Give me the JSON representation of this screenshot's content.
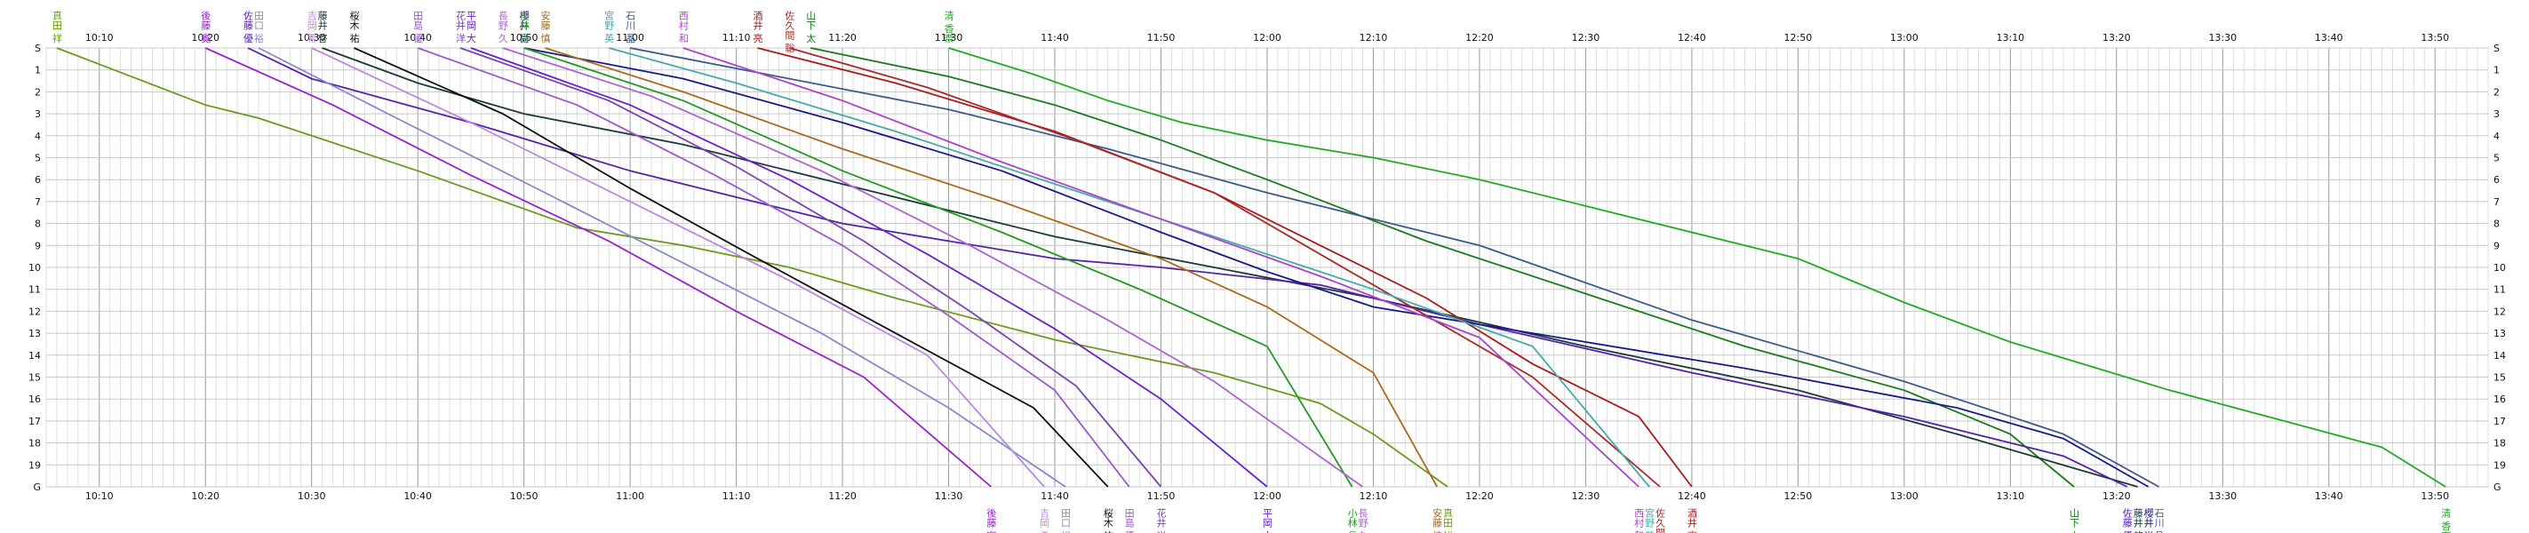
{
  "chart_data": {
    "type": "line",
    "title": "",
    "xlabel": "",
    "ylabel": "",
    "x_axis": {
      "start": "10:05",
      "end": "13:55",
      "tick_labels": [
        "10:10",
        "10:20",
        "10:30",
        "10:40",
        "10:50",
        "11:00",
        "11:10",
        "11:20",
        "11:30",
        "11:40",
        "11:50",
        "12:00",
        "12:10",
        "12:20",
        "12:30",
        "12:40",
        "12:50",
        "13:00",
        "13:10",
        "13:20",
        "13:30",
        "13:40",
        "13:50"
      ]
    },
    "y_axis": {
      "tick_labels": [
        "S",
        "1",
        "2",
        "3",
        "4",
        "5",
        "6",
        "7",
        "8",
        "9",
        "10",
        "11",
        "12",
        "13",
        "14",
        "15",
        "16",
        "17",
        "18",
        "19",
        "G"
      ],
      "ylim": [
        0,
        20
      ],
      "inverted": true
    },
    "grid": true,
    "legend": "none",
    "series": [
      {
        "start_label": "真田 祥",
        "end_label": "真田 祥",
        "color": "#6a9a1a",
        "points": [
          [
            "10:06",
            0
          ],
          [
            "10:20",
            2.6
          ],
          [
            "10:25",
            3.2
          ],
          [
            "10:40",
            5.6
          ],
          [
            "10:55",
            8.2
          ],
          [
            "11:05",
            9.0
          ],
          [
            "11:15",
            10.0
          ],
          [
            "11:25",
            11.4
          ],
          [
            "11:40",
            13.3
          ],
          [
            "11:55",
            14.8
          ],
          [
            "12:05",
            16.2
          ],
          [
            "12:10",
            17.6
          ],
          [
            "12:17",
            20
          ]
        ]
      },
      {
        "start_label": "清 香奈",
        "end_label": "清 香奈",
        "color": "#22aa22",
        "points": [
          [
            "11:30",
            0
          ],
          [
            "11:38",
            1.2
          ],
          [
            "11:45",
            2.4
          ],
          [
            "11:52",
            3.4
          ],
          [
            "12:00",
            4.2
          ],
          [
            "12:10",
            5.0
          ],
          [
            "12:20",
            6.0
          ],
          [
            "12:35",
            7.8
          ],
          [
            "12:50",
            9.6
          ],
          [
            "13:00",
            11.6
          ],
          [
            "13:10",
            13.4
          ],
          [
            "13:25",
            15.6
          ],
          [
            "13:45",
            18.2
          ],
          [
            "13:51",
            20
          ]
        ]
      },
      {
        "start_label": "山下 太",
        "end_label": "山下 太",
        "color": "#1a7a1a",
        "points": [
          [
            "11:17",
            0
          ],
          [
            "11:30",
            1.3
          ],
          [
            "11:40",
            2.6
          ],
          [
            "11:50",
            4.2
          ],
          [
            "12:00",
            6.0
          ],
          [
            "12:15",
            8.8
          ],
          [
            "12:30",
            11.2
          ],
          [
            "12:45",
            13.6
          ],
          [
            "13:00",
            15.6
          ],
          [
            "13:10",
            17.6
          ],
          [
            "13:16",
            20
          ]
        ]
      },
      {
        "start_label": "藤井 啓",
        "end_label": "藤井 啓",
        "color": "#1a3a3a",
        "points": [
          [
            "10:31",
            0
          ],
          [
            "10:40",
            1.6
          ],
          [
            "10:50",
            3.0
          ],
          [
            "11:05",
            4.4
          ],
          [
            "11:25",
            6.8
          ],
          [
            "11:40",
            8.6
          ],
          [
            "11:55",
            10.0
          ],
          [
            "12:10",
            11.4
          ],
          [
            "12:30",
            13.6
          ],
          [
            "12:50",
            15.6
          ],
          [
            "13:05",
            17.6
          ],
          [
            "13:22",
            20
          ]
        ]
      },
      {
        "start_label": "佐藤 優",
        "end_label": "佐藤 優",
        "color": "#5522aa",
        "points": [
          [
            "10:24",
            0
          ],
          [
            "10:30",
            1.4
          ],
          [
            "10:45",
            3.4
          ],
          [
            "11:00",
            5.6
          ],
          [
            "11:20",
            8.0
          ],
          [
            "11:40",
            9.6
          ],
          [
            "11:50",
            10.0
          ],
          [
            "12:05",
            10.8
          ],
          [
            "12:20",
            12.6
          ],
          [
            "12:40",
            14.8
          ],
          [
            "13:00",
            16.8
          ],
          [
            "13:15",
            18.6
          ],
          [
            "13:21",
            20
          ]
        ]
      },
      {
        "start_label": "櫻井 尚",
        "end_label": "櫻井 尚",
        "color": "#1a1a8a",
        "points": [
          [
            "10:50",
            0
          ],
          [
            "11:05",
            1.4
          ],
          [
            "11:20",
            3.4
          ],
          [
            "11:35",
            5.6
          ],
          [
            "11:50",
            8.4
          ],
          [
            "12:00",
            10.2
          ],
          [
            "12:10",
            11.8
          ],
          [
            "12:25",
            13.0
          ],
          [
            "12:45",
            14.6
          ],
          [
            "13:05",
            16.4
          ],
          [
            "13:15",
            17.8
          ],
          [
            "13:23",
            20
          ]
        ]
      },
      {
        "start_label": "石川 晶",
        "end_label": "石川 晶",
        "color": "#3a5a8a",
        "points": [
          [
            "11:00",
            0
          ],
          [
            "11:15",
            1.4
          ],
          [
            "11:30",
            2.8
          ],
          [
            "11:45",
            4.6
          ],
          [
            "12:00",
            6.6
          ],
          [
            "12:20",
            9.0
          ],
          [
            "12:40",
            12.4
          ],
          [
            "13:00",
            15.2
          ],
          [
            "13:15",
            17.6
          ],
          [
            "13:24",
            20
          ]
        ]
      },
      {
        "start_label": "酒井 亮",
        "end_label": "酒井 亮",
        "color": "#aa1a1a",
        "points": [
          [
            "11:12",
            0
          ],
          [
            "11:25",
            1.6
          ],
          [
            "11:40",
            3.8
          ],
          [
            "11:55",
            6.6
          ],
          [
            "12:05",
            9.0
          ],
          [
            "12:15",
            11.4
          ],
          [
            "12:25",
            14.4
          ],
          [
            "12:35",
            16.8
          ],
          [
            "12:40",
            20
          ]
        ]
      },
      {
        "start_label": "佐久間 聡",
        "end_label": "佐久間 聡",
        "color": "#aa2a2a",
        "points": [
          [
            "11:15",
            0
          ],
          [
            "11:28",
            1.8
          ],
          [
            "11:42",
            4.2
          ],
          [
            "11:55",
            6.6
          ],
          [
            "12:05",
            9.4
          ],
          [
            "12:15",
            12.2
          ],
          [
            "12:25",
            15.0
          ],
          [
            "12:37",
            20
          ]
        ]
      },
      {
        "start_label": "宮野 英",
        "end_label": "宮野 英",
        "color": "#44aaaa",
        "points": [
          [
            "10:58",
            0
          ],
          [
            "11:10",
            1.6
          ],
          [
            "11:25",
            3.8
          ],
          [
            "11:40",
            6.2
          ],
          [
            "11:55",
            8.6
          ],
          [
            "12:10",
            11.0
          ],
          [
            "12:25",
            13.6
          ],
          [
            "12:36",
            20
          ]
        ]
      },
      {
        "start_label": "西村 和",
        "end_label": "西村 和",
        "color": "#aa44cc",
        "points": [
          [
            "11:05",
            0
          ],
          [
            "11:20",
            2.4
          ],
          [
            "11:35",
            5.2
          ],
          [
            "11:50",
            7.8
          ],
          [
            "12:05",
            10.4
          ],
          [
            "12:20",
            13.2
          ],
          [
            "12:35",
            20
          ]
        ]
      },
      {
        "start_label": "安藤 慎",
        "end_label": "安藤 慎",
        "color": "#aa6a1a",
        "points": [
          [
            "10:52",
            0
          ],
          [
            "11:05",
            2.0
          ],
          [
            "11:20",
            4.6
          ],
          [
            "11:35",
            7.0
          ],
          [
            "11:50",
            9.6
          ],
          [
            "12:00",
            11.8
          ],
          [
            "12:10",
            14.8
          ],
          [
            "12:16",
            20
          ]
        ]
      },
      {
        "start_label": "小林 岳",
        "end_label": "小林 岳",
        "color": "#229922",
        "points": [
          [
            "10:50",
            0
          ],
          [
            "11:05",
            2.4
          ],
          [
            "11:20",
            5.6
          ],
          [
            "11:35",
            8.4
          ],
          [
            "11:48",
            11.0
          ],
          [
            "12:00",
            13.6
          ],
          [
            "12:08",
            20
          ]
        ]
      },
      {
        "start_label": "長野 久",
        "end_label": "長野 久",
        "color": "#aa66cc",
        "points": [
          [
            "10:48",
            0
          ],
          [
            "11:02",
            2.2
          ],
          [
            "11:18",
            5.6
          ],
          [
            "11:32",
            9.0
          ],
          [
            "11:45",
            12.4
          ],
          [
            "11:55",
            15.2
          ],
          [
            "12:09",
            20
          ]
        ]
      },
      {
        "start_label": "平岡 大",
        "end_label": "平岡 大",
        "color": "#6a22cc",
        "points": [
          [
            "10:45",
            0
          ],
          [
            "11:00",
            2.6
          ],
          [
            "11:15",
            6.0
          ],
          [
            "11:28",
            9.4
          ],
          [
            "11:40",
            12.8
          ],
          [
            "11:50",
            16.0
          ],
          [
            "12:00",
            20
          ]
        ]
      },
      {
        "start_label": "花井 洋",
        "end_label": "花井 洋",
        "color": "#7a44aa",
        "points": [
          [
            "10:44",
            0
          ],
          [
            "10:58",
            2.4
          ],
          [
            "11:10",
            5.4
          ],
          [
            "11:22",
            8.8
          ],
          [
            "11:32",
            12.0
          ],
          [
            "11:42",
            15.4
          ],
          [
            "11:50",
            20
          ]
        ]
      },
      {
        "start_label": "田島 優",
        "end_label": "田島 優",
        "color": "#9a5acc",
        "points": [
          [
            "10:40",
            0
          ],
          [
            "10:55",
            2.6
          ],
          [
            "11:08",
            5.8
          ],
          [
            "11:20",
            9.0
          ],
          [
            "11:30",
            12.2
          ],
          [
            "11:40",
            15.6
          ],
          [
            "11:47",
            20
          ]
        ]
      },
      {
        "start_label": "桜木 祐",
        "end_label": "桜木 祐",
        "color": "#111111",
        "points": [
          [
            "10:34",
            0
          ],
          [
            "10:48",
            3.0
          ],
          [
            "11:00",
            6.4
          ],
          [
            "11:12",
            9.6
          ],
          [
            "11:25",
            13.0
          ],
          [
            "11:38",
            16.4
          ],
          [
            "11:45",
            20
          ]
        ]
      },
      {
        "start_label": "田口 裕",
        "end_label": "田口 裕",
        "color": "#8888cc",
        "points": [
          [
            "10:25",
            0
          ],
          [
            "10:38",
            3.2
          ],
          [
            "10:52",
            6.6
          ],
          [
            "11:05",
            9.8
          ],
          [
            "11:18",
            13.0
          ],
          [
            "11:30",
            16.4
          ],
          [
            "11:41",
            20
          ]
        ]
      },
      {
        "start_label": "吉岡 希",
        "end_label": "吉岡 希",
        "color": "#bb88dd",
        "points": [
          [
            "10:30",
            0
          ],
          [
            "10:45",
            3.4
          ],
          [
            "11:00",
            7.0
          ],
          [
            "11:15",
            10.6
          ],
          [
            "11:28",
            14.0
          ],
          [
            "11:39",
            20
          ]
        ]
      },
      {
        "start_label": "後藤 寛",
        "end_label": "後藤 寛",
        "color": "#9922cc",
        "points": [
          [
            "10:20",
            0
          ],
          [
            "10:32",
            2.6
          ],
          [
            "10:45",
            5.8
          ],
          [
            "10:58",
            8.8
          ],
          [
            "11:10",
            12.0
          ],
          [
            "11:22",
            15.0
          ],
          [
            "11:34",
            20
          ]
        ]
      }
    ]
  }
}
